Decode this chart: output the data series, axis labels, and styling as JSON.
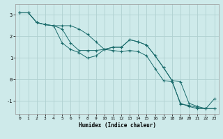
{
  "xlabel": "Humidex (Indice chaleur)",
  "bg_color": "#ceeaea",
  "grid_color": "#b0d0d0",
  "line_color": "#1a6b6b",
  "xlim": [
    -0.5,
    23.5
  ],
  "ylim": [
    -1.6,
    3.5
  ],
  "yticks": [
    -1,
    0,
    1,
    2,
    3
  ],
  "xticks": [
    0,
    1,
    2,
    3,
    4,
    5,
    6,
    7,
    8,
    9,
    10,
    11,
    12,
    13,
    14,
    15,
    16,
    17,
    18,
    19,
    20,
    21,
    22,
    23
  ],
  "series1_x": [
    0,
    1,
    2,
    3,
    4,
    5,
    6,
    7,
    8,
    9,
    10,
    11,
    12,
    13,
    14,
    15,
    16,
    17,
    18,
    19,
    20,
    21,
    22,
    23
  ],
  "series1_y": [
    3.1,
    3.1,
    2.65,
    2.55,
    2.5,
    1.7,
    1.4,
    1.25,
    1.0,
    1.1,
    1.4,
    1.5,
    1.5,
    1.85,
    1.75,
    1.6,
    1.1,
    0.55,
    -0.05,
    -1.15,
    -1.2,
    -1.3,
    -1.35,
    -1.35
  ],
  "series2_x": [
    0,
    1,
    2,
    3,
    4,
    5,
    6,
    7,
    8,
    9,
    10,
    11,
    12,
    13,
    14,
    15,
    16,
    17,
    18,
    19,
    20,
    21,
    22,
    23
  ],
  "series2_y": [
    3.1,
    3.1,
    2.65,
    2.55,
    2.5,
    2.5,
    2.5,
    2.35,
    2.1,
    1.75,
    1.4,
    1.35,
    1.3,
    1.35,
    1.3,
    1.1,
    0.5,
    -0.05,
    -0.1,
    -1.1,
    -1.25,
    -1.35,
    -1.35,
    -0.9
  ],
  "series3_x": [
    0,
    1,
    2,
    3,
    4,
    5,
    6,
    7,
    8,
    9,
    10,
    11,
    12,
    13,
    14,
    15,
    16,
    17,
    18,
    19,
    20,
    21,
    22,
    23
  ],
  "series3_y": [
    3.1,
    3.1,
    2.65,
    2.55,
    2.5,
    2.35,
    1.7,
    1.35,
    1.35,
    1.35,
    1.4,
    1.5,
    1.5,
    1.85,
    1.75,
    1.6,
    1.1,
    0.55,
    -0.05,
    -0.1,
    -1.1,
    -1.25,
    -1.35,
    -1.35
  ]
}
